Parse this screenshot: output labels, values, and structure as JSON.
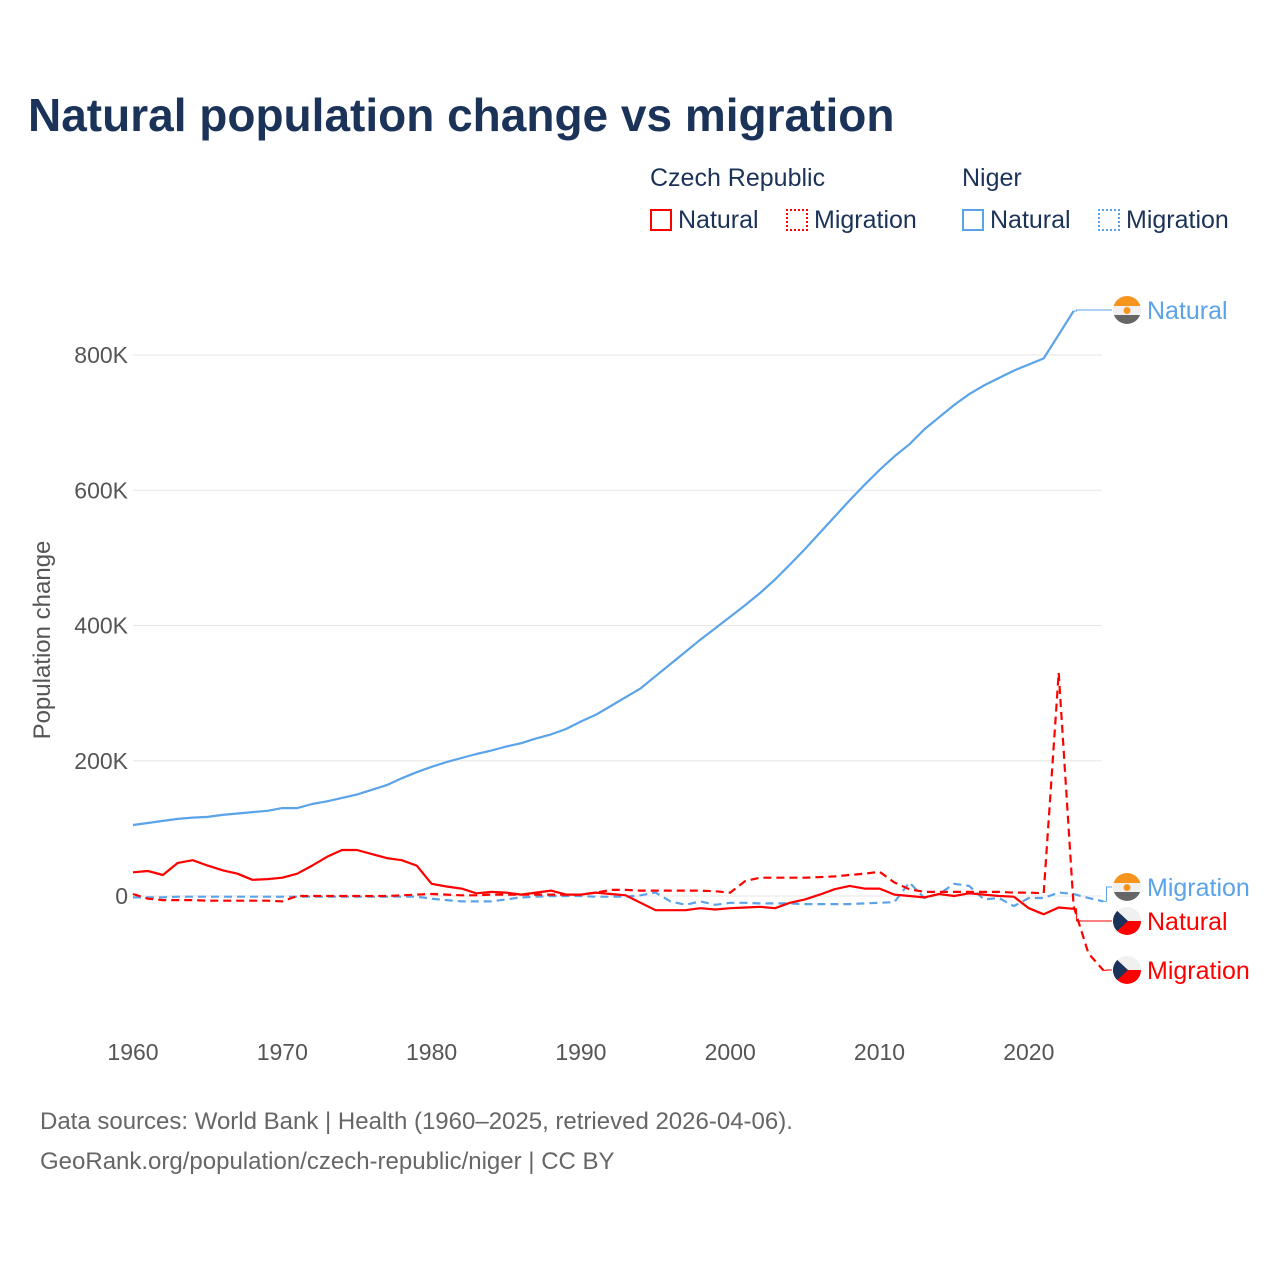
{
  "chart_data": {
    "type": "line",
    "title": "Natural population change vs migration",
    "ylabel": "Population change",
    "xlabel": "",
    "ylim": [
      -200000,
      900000
    ],
    "xlim": [
      1960,
      2025
    ],
    "yticks": [
      {
        "v": 0,
        "label": "0"
      },
      {
        "v": 200000,
        "label": "200K"
      },
      {
        "v": 400000,
        "label": "400K"
      },
      {
        "v": 600000,
        "label": "600K"
      },
      {
        "v": 800000,
        "label": "800K"
      }
    ],
    "xticks": [
      1960,
      1970,
      1980,
      1990,
      2000,
      2010,
      2020
    ],
    "legend": {
      "groups": [
        {
          "name": "Czech Republic",
          "items": [
            "Natural",
            "Migration"
          ]
        },
        {
          "name": "Niger",
          "items": [
            "Natural",
            "Migration"
          ]
        }
      ],
      "placement": "top-right"
    },
    "series": [
      {
        "country": "Niger",
        "name": "Natural",
        "color": "#5ba3e8",
        "dash": false,
        "start": 1960,
        "values": [
          105000,
          108000,
          111000,
          114000,
          116000,
          117000,
          120000,
          122000,
          124000,
          126000,
          130000,
          130000,
          136000,
          140000,
          145000,
          150000,
          157000,
          164000,
          174000,
          183000,
          191000,
          198000,
          204000,
          210000,
          215000,
          221000,
          226000,
          233000,
          239000,
          247000,
          258000,
          268000,
          281000,
          294000,
          307000,
          325000,
          343000,
          361000,
          379000,
          396000,
          413000,
          430000,
          448000,
          468000,
          490000,
          513000,
          537000,
          561000,
          585000,
          608000,
          630000,
          650000,
          668000,
          690000,
          708000,
          726000,
          742000,
          755000,
          766000,
          777000,
          786000,
          795000,
          830000,
          865000
        ]
      },
      {
        "country": "Niger",
        "name": "Migration",
        "color": "#5ba3e8",
        "dash": true,
        "start": 1960,
        "values": [
          -2000,
          -2000,
          -2000,
          -1000,
          -1000,
          -1000,
          -1000,
          -1000,
          -1000,
          -1000,
          -1000,
          -1000,
          -1000,
          -1000,
          -1000,
          -1000,
          -1000,
          -1000,
          -1000,
          -1000,
          -4000,
          -6000,
          -8000,
          -8000,
          -8000,
          -5000,
          -2000,
          -1000,
          0,
          0,
          0,
          -1000,
          -1000,
          -1000,
          1000,
          5000,
          -8000,
          -13000,
          -8000,
          -13000,
          -10000,
          -10000,
          -11000,
          -11000,
          -11000,
          -12000,
          -12000,
          -12000,
          -12000,
          -11000,
          -10000,
          -9000,
          20000,
          -3000,
          3000,
          18000,
          15000,
          -5000,
          -3000,
          -15000,
          -3000,
          -3000,
          5000,
          3000,
          -3000,
          -8000
        ]
      },
      {
        "country": "Czech Republic",
        "name": "Natural",
        "color": "#ff0000",
        "dash": false,
        "start": 1960,
        "values": [
          35000,
          37000,
          31000,
          49000,
          53000,
          45000,
          38000,
          33000,
          24000,
          25000,
          27000,
          33000,
          45000,
          58000,
          68000,
          68000,
          62000,
          56000,
          53000,
          45000,
          18000,
          14000,
          11000,
          4000,
          6000,
          5000,
          2000,
          5000,
          8000,
          2000,
          2000,
          5000,
          3000,
          1000,
          -10000,
          -21000,
          -21000,
          -21000,
          -18000,
          -20000,
          -18000,
          -17000,
          -16000,
          -18000,
          -10000,
          -5000,
          2000,
          10000,
          15000,
          11000,
          11000,
          2000,
          0,
          -2000,
          3000,
          0,
          4000,
          2000,
          0,
          -1000,
          -18000,
          -27000,
          -17000,
          -19000
        ]
      },
      {
        "country": "Czech Republic",
        "name": "Migration",
        "color": "#ff0000",
        "dash": true,
        "start": 1960,
        "values": [
          3000,
          -4000,
          -6000,
          -6000,
          -6000,
          -7000,
          -7000,
          -7000,
          -7000,
          -7000,
          -8000,
          0,
          0,
          0,
          0,
          0,
          0,
          0,
          1000,
          2000,
          3000,
          2000,
          1000,
          1000,
          2000,
          2000,
          2000,
          2000,
          2000,
          2000,
          2000,
          5000,
          9000,
          9000,
          8000,
          8000,
          8000,
          8000,
          8000,
          7000,
          5000,
          22000,
          27000,
          27000,
          27000,
          27000,
          28000,
          29000,
          31000,
          33000,
          36000,
          20000,
          10000,
          6000,
          6000,
          6000,
          6000,
          6000,
          6000,
          5000,
          5000,
          4000,
          330000,
          -15000,
          -85000,
          -110000
        ]
      }
    ],
    "end_labels": [
      {
        "series": "Niger Natural",
        "text": "Natural",
        "color": "#5ba3e8",
        "flag": "niger"
      },
      {
        "series": "Niger Migration",
        "text": "Migration",
        "color": "#5ba3e8",
        "flag": "niger"
      },
      {
        "series": "Czech Natural",
        "text": "Natural",
        "color": "#ff0000",
        "flag": "czech"
      },
      {
        "series": "Czech Migration",
        "text": "Migration",
        "color": "#ff0000",
        "flag": "czech"
      }
    ]
  },
  "footer": {
    "line1": "Data sources: World Bank | Health (1960–2025, retrieved 2026-04-06).",
    "line2": "GeoRank.org/population/czech-republic/niger | CC BY"
  }
}
